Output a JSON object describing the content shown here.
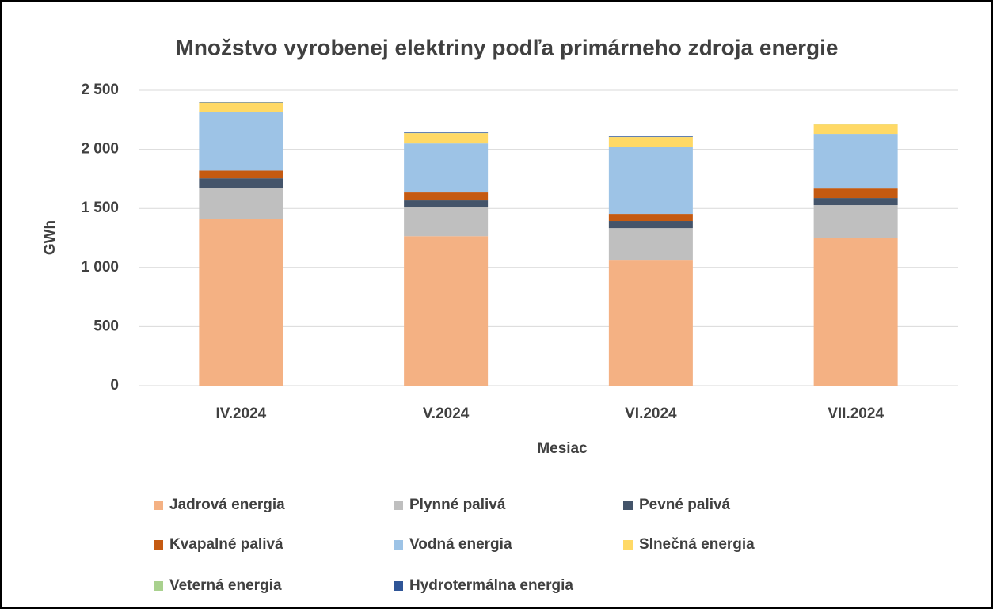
{
  "chart_data": {
    "type": "stacked_bar",
    "title": "Množstvo vyrobenej elektriny podľa primárneho zdroja energie",
    "x_label": "Mesiac",
    "y_label": "GWh",
    "categories": [
      "IV.2024",
      "V.2024",
      "VI.2024",
      "VII.2024"
    ],
    "series": [
      {
        "name": "Jadrová energia",
        "color": "#f4b183",
        "values": [
          1410,
          1265,
          1065,
          1250
        ]
      },
      {
        "name": "Plynné palivá",
        "color": "#bfbfbf",
        "values": [
          265,
          243,
          268,
          278
        ]
      },
      {
        "name": "Pevné palivá",
        "color": "#44546a",
        "values": [
          80,
          60,
          61,
          60
        ]
      },
      {
        "name": "Kvapalné palivá",
        "color": "#c55a11",
        "values": [
          65,
          67,
          60,
          80
        ]
      },
      {
        "name": "Vodná energia",
        "color": "#9dc3e6",
        "values": [
          495,
          415,
          569,
          463
        ]
      },
      {
        "name": "Slnečná energia",
        "color": "#ffd966",
        "values": [
          80,
          87,
          81,
          80
        ]
      },
      {
        "name": "Veterná energia",
        "color": "#a9d18e",
        "values": [
          1,
          1,
          1,
          1
        ]
      },
      {
        "name": "Hydrotermálna energia",
        "color": "#2f5597",
        "values": [
          3,
          5,
          5,
          5
        ]
      }
    ],
    "ylim": [
      0,
      2500
    ],
    "yticks": [
      0,
      500,
      {
        "value": 1000,
        "label": "1 000"
      },
      {
        "value": 1500,
        "label": "1 500"
      },
      {
        "value": 2000,
        "label": "2 000"
      },
      {
        "value": 2500,
        "label": "2 500"
      }
    ],
    "grid": true,
    "legend": "bottom"
  }
}
